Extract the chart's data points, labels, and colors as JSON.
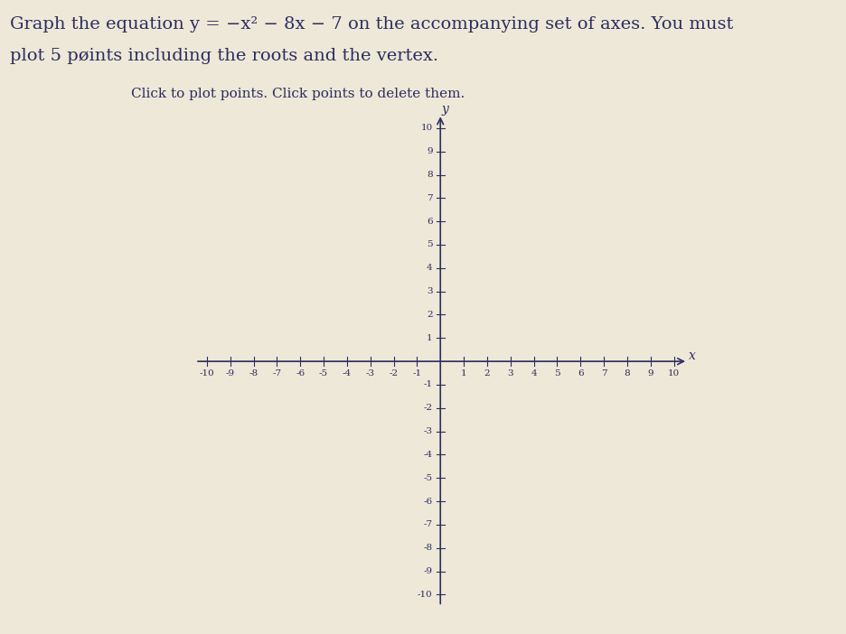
{
  "title_line1": "Graph the equation y = −x² − 8x − 7 on the accompanying set of axes. You must",
  "title_line2": "plot 5 pøints including the roots and the vertex.",
  "subtitle": "Click to plot points. Click points to delete them.",
  "xlim": [
    -10,
    10
  ],
  "ylim": [
    -10,
    10
  ],
  "xticks": [
    -10,
    -9,
    -8,
    -7,
    -6,
    -5,
    -4,
    -3,
    -2,
    -1,
    1,
    2,
    3,
    4,
    5,
    6,
    7,
    8,
    9,
    10
  ],
  "yticks": [
    -10,
    -9,
    -8,
    -7,
    -6,
    -5,
    -4,
    -3,
    -2,
    -1,
    1,
    2,
    3,
    4,
    5,
    6,
    7,
    8,
    9,
    10
  ],
  "x_label": "x",
  "y_label": "y",
  "axis_color": "#2d2d5e",
  "tick_label_color": "#2d2d5e",
  "background_color": "#ede8d8",
  "text_color": "#2d2d5e",
  "title_fontsize": 14,
  "subtitle_fontsize": 11,
  "tick_fontsize": 7.5
}
